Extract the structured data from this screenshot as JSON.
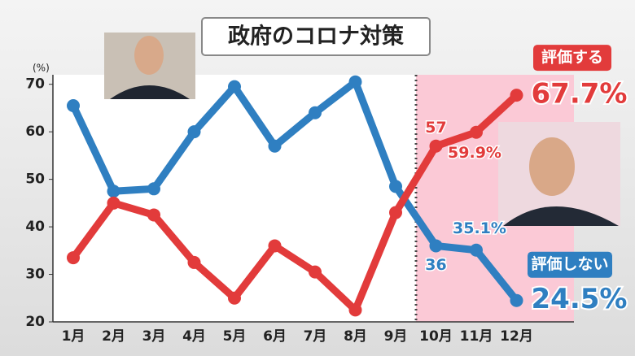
{
  "chart_data": {
    "type": "line",
    "title": "政府のコロナ対策",
    "y_unit": "(%)",
    "categories": [
      "1月",
      "2月",
      "3月",
      "4月",
      "5月",
      "6月",
      "7月",
      "8月",
      "9月",
      "10月",
      "11月",
      "12月"
    ],
    "ylim": [
      20,
      72
    ],
    "yticks": [
      20,
      30,
      40,
      50,
      60,
      70
    ],
    "series": [
      {
        "name": "評価しない",
        "color": "#2f7fc1",
        "values": [
          65.5,
          47.5,
          48,
          60,
          69.5,
          57,
          64,
          70.5,
          48.5,
          36,
          35.1,
          24.5
        ],
        "value_labels": [
          null,
          null,
          null,
          null,
          null,
          null,
          null,
          null,
          null,
          "36",
          "35.1%",
          "24.5%"
        ]
      },
      {
        "name": "評価する",
        "color": "#e23b3b",
        "values": [
          33.5,
          45,
          42.5,
          32.5,
          25,
          36,
          30.5,
          22.5,
          43,
          57,
          59.9,
          67.7
        ],
        "value_labels": [
          null,
          null,
          null,
          null,
          null,
          null,
          null,
          null,
          null,
          "57",
          "59.9%",
          "67.7%"
        ]
      }
    ]
  }
}
